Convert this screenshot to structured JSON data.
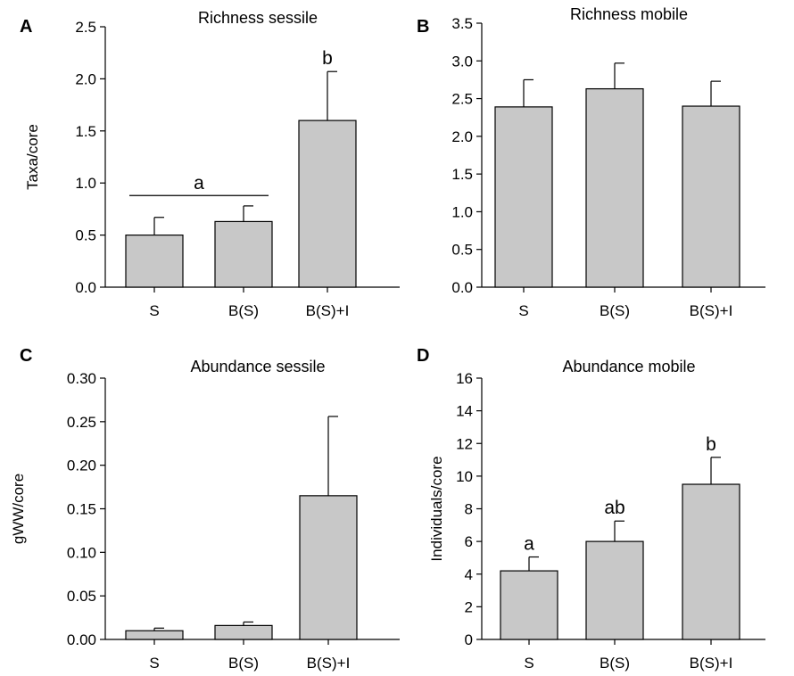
{
  "chart_data": [
    {
      "panel": "A",
      "type": "bar",
      "title": "Richness sessile",
      "ylabel": "Taxa/core",
      "categories": [
        "S",
        "B(S)",
        "B(S)+I"
      ],
      "values": [
        0.5,
        0.63,
        1.6
      ],
      "errors": [
        0.17,
        0.15,
        0.47
      ],
      "ylim": [
        0,
        2.5
      ],
      "yticks": [
        "0.0",
        "0.5",
        "1.0",
        "1.5",
        "2.0",
        "2.5"
      ],
      "annotations": [
        {
          "text": "a",
          "spans": [
            "S",
            "B(S)"
          ],
          "y": 0.88
        },
        {
          "text": "b",
          "over": "B(S)+I"
        }
      ],
      "bar_color": "#c8c8c8"
    },
    {
      "panel": "B",
      "type": "bar",
      "title": "Richness mobile",
      "ylabel": "",
      "categories": [
        "S",
        "B(S)",
        "B(S)+I"
      ],
      "values": [
        2.39,
        2.63,
        2.4
      ],
      "errors": [
        0.36,
        0.34,
        0.33
      ],
      "ylim": [
        0,
        3.5
      ],
      "yticks": [
        "0.0",
        "0.5",
        "1.0",
        "1.5",
        "2.0",
        "2.5",
        "3.0",
        "3.5"
      ],
      "annotations": [],
      "bar_color": "#c8c8c8"
    },
    {
      "panel": "C",
      "type": "bar",
      "title": "Abundance sessile",
      "ylabel": "gWW/core",
      "categories": [
        "S",
        "B(S)",
        "B(S)+I"
      ],
      "values": [
        0.01,
        0.016,
        0.165
      ],
      "errors": [
        0.003,
        0.004,
        0.091
      ],
      "ylim": [
        0,
        0.3
      ],
      "yticks": [
        "0.00",
        "0.05",
        "0.10",
        "0.15",
        "0.20",
        "0.25",
        "0.30"
      ],
      "annotations": [],
      "bar_color": "#c8c8c8"
    },
    {
      "panel": "D",
      "type": "bar",
      "title": "Abundance mobile",
      "ylabel": "Individuals/core",
      "categories": [
        "S",
        "B(S)",
        "B(S)+I"
      ],
      "values": [
        4.2,
        6.0,
        9.5
      ],
      "errors": [
        0.85,
        1.25,
        1.65
      ],
      "ylim": [
        0,
        16
      ],
      "yticks": [
        "0",
        "2",
        "4",
        "6",
        "8",
        "10",
        "12",
        "14",
        "16"
      ],
      "annotations": [
        {
          "text": "a",
          "over": "S"
        },
        {
          "text": "ab",
          "over": "B(S)"
        },
        {
          "text": "b",
          "over": "B(S)+I"
        }
      ],
      "bar_color": "#c8c8c8"
    }
  ]
}
